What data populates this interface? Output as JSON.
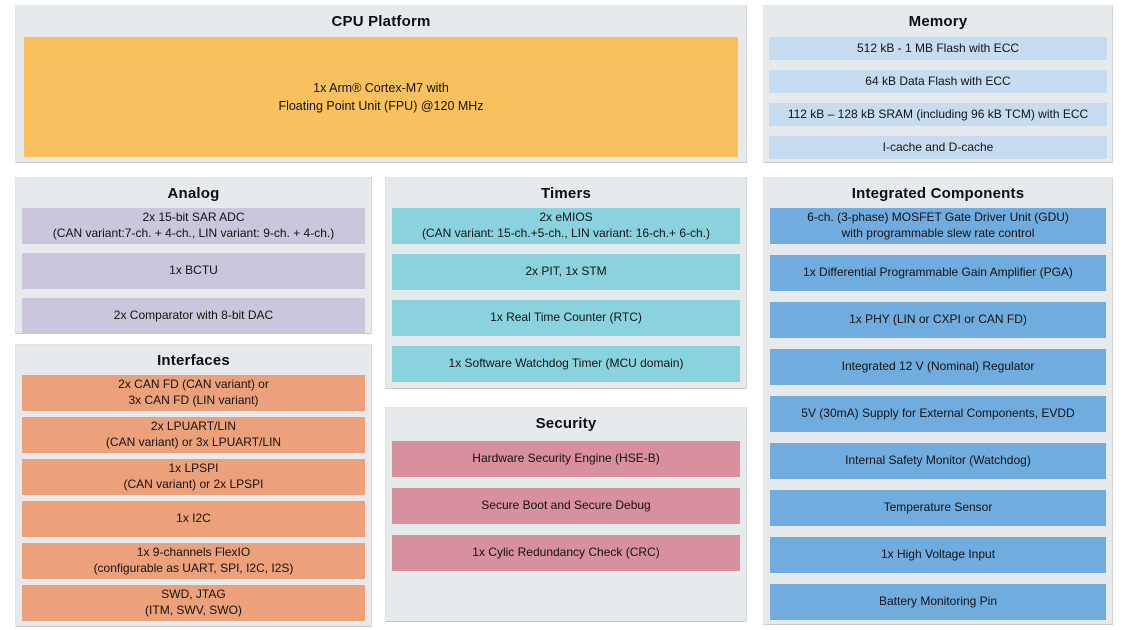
{
  "panels": {
    "cpu": {
      "title": "CPU Platform",
      "block": "1x Arm® Cortex-M7 with\nFloating Point Unit (FPU) @120 MHz"
    },
    "memory": {
      "title": "Memory",
      "rows": [
        "512 kB - 1 MB Flash with ECC",
        "64 kB Data Flash with ECC",
        "112 kB – 128 kB SRAM (including 96 kB TCM) with ECC",
        "I-cache and D-cache"
      ]
    },
    "analog": {
      "title": "Analog",
      "rows": [
        "2x 15-bit SAR ADC\n(CAN variant:7-ch. + 4-ch., LIN variant: 9-ch. + 4-ch.)",
        "1x BCTU",
        "2x Comparator with 8-bit DAC"
      ]
    },
    "interfaces": {
      "title": "Interfaces",
      "rows": [
        "2x CAN FD (CAN variant) or\n3x CAN FD (LIN variant)",
        "2x LPUART/LIN\n(CAN variant) or 3x LPUART/LIN",
        "1x LPSPI\n(CAN variant) or 2x LPSPI",
        "1x I2C",
        "1x 9-channels FlexIO\n(configurable as UART, SPI, I2C, I2S)",
        "SWD, JTAG\n(ITM, SWV, SWO)"
      ]
    },
    "timers": {
      "title": "Timers",
      "rows": [
        "2x eMIOS\n(CAN variant: 15-ch.+5-ch., LIN variant: 16-ch.+ 6-ch.)",
        "2x PIT, 1x STM",
        "1x Real Time Counter (RTC)",
        "1x Software Watchdog Timer (MCU domain)"
      ]
    },
    "security": {
      "title": "Security",
      "rows": [
        "Hardware Security Engine (HSE-B)",
        "Secure Boot and Secure Debug",
        "1x Cylic Redundancy Check (CRC)"
      ]
    },
    "integrated": {
      "title": "Integrated Components",
      "rows": [
        "6-ch. (3-phase) MOSFET Gate Driver Unit (GDU)\nwith programmable slew rate control",
        "1x Differential Programmable Gain Amplifier (PGA)",
        "1x PHY (LIN or CXPI or CAN FD)",
        "Integrated 12 V (Nominal) Regulator",
        "5V (30mA) Supply for External Components, EVDD",
        "Internal Safety Monitor (Watchdog)",
        "Temperature Sensor",
        "1x High Voltage Input",
        "Battery Monitoring Pin"
      ]
    }
  },
  "colors": {
    "panel_bg": "#E6EAED",
    "cpu_block": "#FAC15E",
    "memory_row": "#C6DCF1",
    "analog_row": "#CBC5DD",
    "interfaces_row": "#ECA17A",
    "timers_row": "#8AD3DE",
    "security_row": "#D88F9E",
    "integrated_row": "#70ACDD"
  }
}
